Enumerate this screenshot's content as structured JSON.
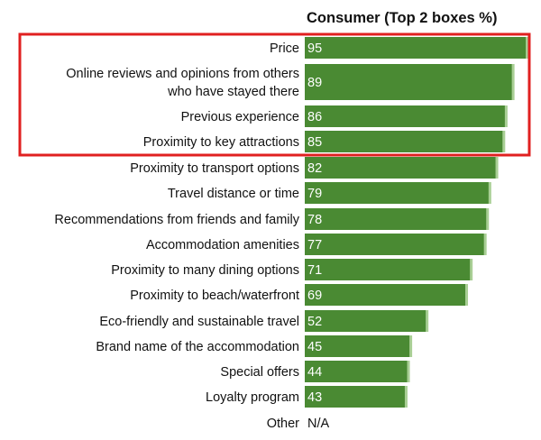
{
  "chart_data": {
    "type": "bar",
    "orientation": "horizontal",
    "title": "Consumer (Top 2 boxes %)",
    "categories": [
      "Price",
      "Online reviews and opinions from others who have stayed there",
      "Previous experience",
      "Proximity to key attractions",
      "Proximity to transport options",
      "Travel distance or time",
      "Recommendations from friends and family",
      "Accommodation amenities",
      "Proximity to many dining options",
      "Proximity to beach/waterfront",
      "Eco-friendly and sustainable travel",
      "Brand name of the accommodation",
      "Special offers",
      "Loyalty program",
      "Other"
    ],
    "values": [
      95,
      89,
      86,
      85,
      82,
      79,
      78,
      77,
      71,
      69,
      52,
      45,
      44,
      43,
      null
    ],
    "value_labels": [
      "95",
      "89",
      "86",
      "85",
      "82",
      "79",
      "78",
      "77",
      "71",
      "69",
      "52",
      "45",
      "44",
      "43",
      "N/A"
    ],
    "xlim": [
      0,
      100
    ],
    "grid": false,
    "legend": "none",
    "colors": {
      "bar": "#4a8a33",
      "bar_edge": "#a9cf95",
      "highlight_box": "#e02020"
    },
    "highlighted_categories": [
      "Price",
      "Online reviews and opinions from others who have stayed there",
      "Previous experience",
      "Proximity to key attractions"
    ]
  }
}
